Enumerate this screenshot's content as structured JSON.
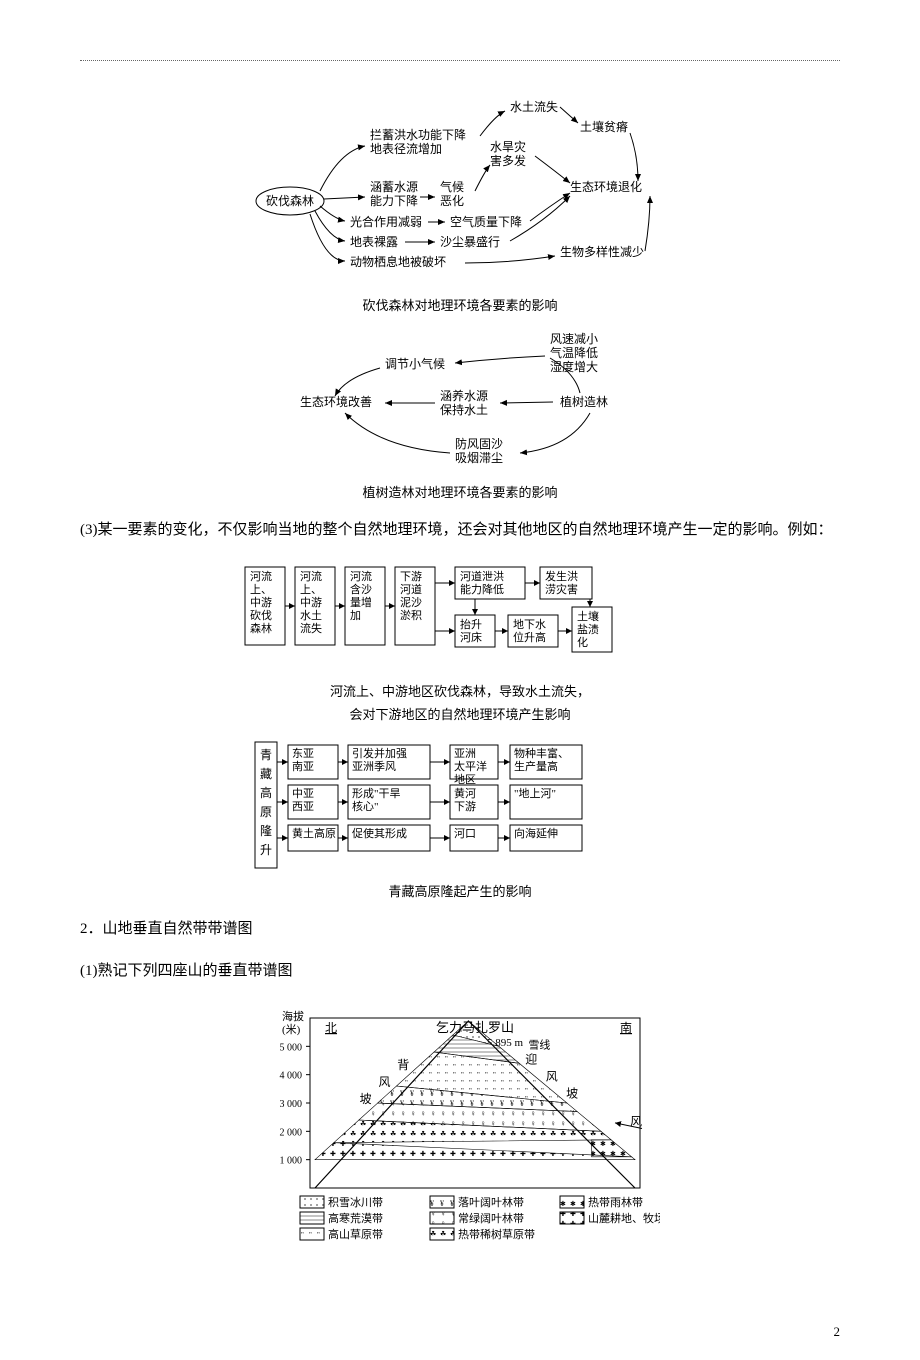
{
  "page_number": "2",
  "diagram1": {
    "caption": "砍伐森林对地理环境各要素的影响",
    "nodes": {
      "root": "砍伐森林",
      "a1_l1": "拦蓄洪水功能下降",
      "a1_l2": "地表径流增加",
      "a2_l1": "涵蓄水源",
      "a2_l2": "能力下降",
      "a2b": "气候恶化",
      "a3": "光合作用减弱",
      "a3b": "空气质量下降",
      "a4": "地表裸露",
      "a4b": "沙尘暴盛行",
      "a5": "动物栖息地被破坏",
      "top": "水土流失",
      "mid_l1": "水旱灾",
      "mid_l2": "害多发",
      "right1": "土壤贫瘠",
      "right2": "生态环境退化",
      "right3": "生物多样性减少"
    },
    "colors": {
      "stroke": "#000000",
      "text": "#000000",
      "bg": "#ffffff"
    },
    "fontsize": 12
  },
  "diagram2": {
    "caption": "植树造林对地理环境各要素的影响",
    "nodes": {
      "root": "植树造林",
      "top": "调节小气候",
      "top_r_l1": "风速减小",
      "top_r_l2": "气温降低",
      "top_r_l3": "湿度增大",
      "left": "生态环境改善",
      "mid_l1": "涵养水源",
      "mid_l2": "保持水土",
      "bot_l1": "防风固沙",
      "bot_l2": "吸烟滞尘"
    },
    "colors": {
      "stroke": "#000000",
      "text": "#000000"
    },
    "fontsize": 12
  },
  "text_block": "(3)某一要素的变化，不仅影响当地的整个自然地理环境，还会对其他地区的自然地理环境产生一定的影响。例如：",
  "diagram3": {
    "caption_l1": "河流上、中游地区砍伐森林，导致水土流失，",
    "caption_l2": "会对下游地区的自然地理环境产生影响",
    "boxes": [
      "河流\n上、\n中游\n砍伐\n森林",
      "河流\n上、\n中游\n水土\n流失",
      "河流\n含沙\n量增\n加",
      "下游\n河道\n泥沙\n淤积",
      "河道泄洪\n能力降低",
      "发生洪\n涝灾害",
      "抬升\n河床",
      "地下水\n位升高",
      "土壤\n盐渍\n化"
    ],
    "colors": {
      "stroke": "#000000",
      "box_bg": "#ffffff"
    },
    "fontsize": 11
  },
  "diagram4": {
    "caption": "青藏高原隆起产生的影响",
    "left_label": "青藏高原隆升",
    "rows": [
      {
        "a": "东亚\n南亚",
        "b": "引发并加强\n亚洲季风",
        "c": "亚洲\n太平洋\n地区",
        "d": "物种丰富、\n生产量高"
      },
      {
        "a": "中亚\n西亚",
        "b": "形成\"干旱\n核心\"",
        "c": "黄河\n下游",
        "d": "\"地上河\""
      },
      {
        "a": "黄土高原",
        "b": "促使其形成",
        "c": "河口",
        "d": "向海延伸"
      }
    ],
    "colors": {
      "stroke": "#000000"
    },
    "fontsize": 11
  },
  "section2_label": "2．山地垂直自然带带谱图",
  "section2_sub": "(1)熟记下列四座山的垂直带谱图",
  "kilimanjaro": {
    "title": "乞力马扎罗山",
    "peak_label": "5 895 m",
    "y_label_l1": "海拔",
    "y_label_l2": "(米)",
    "north": "北",
    "south": "南",
    "lee_l1": "背",
    "lee_l2": "风",
    "lee_l3": "坡",
    "windward_l1": "迎",
    "windward_l2": "风",
    "windward_l3": "坡",
    "wind": "风",
    "snowline": "雪线",
    "yticks": [
      "1 000",
      "2 000",
      "3 000",
      "4 000",
      "5 000"
    ],
    "yvals": [
      1000,
      2000,
      3000,
      4000,
      5000
    ],
    "ymax": 6000,
    "legend": [
      {
        "name": "积雪冰川带",
        "pattern": "snow"
      },
      {
        "name": "高寒荒漠带",
        "pattern": "desert"
      },
      {
        "name": "高山草原带",
        "pattern": "alpine_grass"
      },
      {
        "name": "落叶阔叶林带",
        "pattern": "deciduous"
      },
      {
        "name": "常绿阔叶林带",
        "pattern": "evergreen"
      },
      {
        "name": "热带稀树草原带",
        "pattern": "savanna"
      },
      {
        "name": "热带雨林带",
        "pattern": "rainforest"
      },
      {
        "name": "山麓耕地、牧场",
        "pattern": "farmland"
      }
    ],
    "colors": {
      "stroke": "#000000",
      "fill_light": "#cccccc"
    },
    "fontsize": 11
  }
}
